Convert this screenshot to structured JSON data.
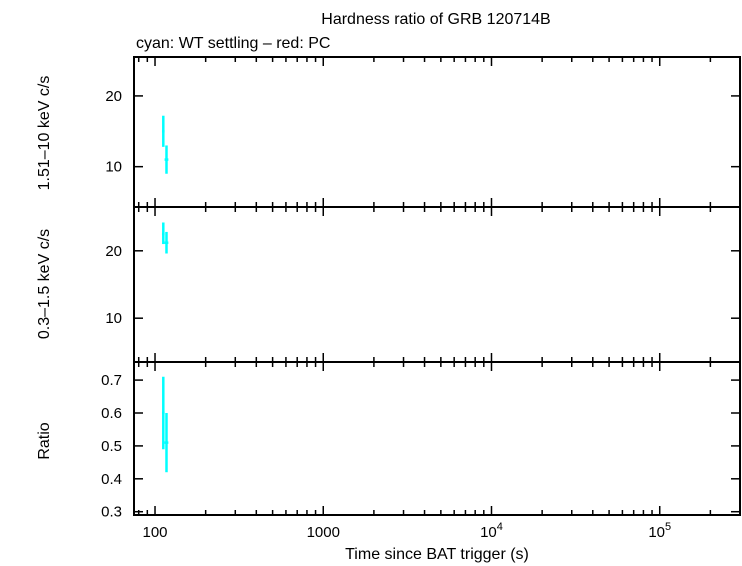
{
  "chart_data": {
    "type": "scatter",
    "title": "Hardness ratio of GRB 120714B",
    "subtitle": "cyan: WT settling – red: PC",
    "xlabel": "Time since BAT trigger (s)",
    "x_scale": "log",
    "xlim": [
      75,
      300000
    ],
    "x_ticks": [
      {
        "value": 100,
        "label": "100"
      },
      {
        "value": 1000,
        "label": "1000"
      },
      {
        "value": 10000,
        "label": "10",
        "exp": "4"
      },
      {
        "value": 100000,
        "label": "10",
        "exp": "5"
      }
    ],
    "colors": {
      "wt_settling": "#00ffff",
      "pc": "#ff0000"
    },
    "panels": [
      {
        "id": "hard",
        "ylabel": "1.51–10 keV c/s",
        "ylim": [
          4.3,
          25.5
        ],
        "y_ticks": [
          {
            "value": 10,
            "label": "10"
          },
          {
            "value": 20,
            "label": "20"
          }
        ],
        "series": [
          {
            "mode": "wt_settling",
            "points": [
              {
                "x": 112,
                "y": 15.0,
                "ylo": 12.8,
                "yhi": 17.2,
                "xlo": 110,
                "xhi": 114
              },
              {
                "x": 117,
                "y": 11.0,
                "ylo": 9.0,
                "yhi": 13.0,
                "xlo": 114,
                "xhi": 120
              }
            ]
          }
        ]
      },
      {
        "id": "soft",
        "ylabel": "0.3–1.5 keV c/s",
        "ylim": [
          3.5,
          26.5
        ],
        "y_ticks": [
          {
            "value": 10,
            "label": "10"
          },
          {
            "value": 20,
            "label": "20"
          }
        ],
        "series": [
          {
            "mode": "wt_settling",
            "points": [
              {
                "x": 112,
                "y": 22.5,
                "ylo": 21.0,
                "yhi": 24.2,
                "xlo": 110,
                "xhi": 114
              },
              {
                "x": 117,
                "y": 21.2,
                "ylo": 19.6,
                "yhi": 22.8,
                "xlo": 114,
                "xhi": 120
              }
            ]
          }
        ]
      },
      {
        "id": "ratio",
        "ylabel": "Ratio",
        "ylim": [
          0.29,
          0.755
        ],
        "y_ticks": [
          {
            "value": 0.3,
            "label": "0.3"
          },
          {
            "value": 0.4,
            "label": "0.4"
          },
          {
            "value": 0.5,
            "label": "0.5"
          },
          {
            "value": 0.6,
            "label": "0.6"
          },
          {
            "value": 0.7,
            "label": "0.7"
          }
        ],
        "series": [
          {
            "mode": "wt_settling",
            "points": [
              {
                "x": 112,
                "y": 0.6,
                "ylo": 0.49,
                "yhi": 0.71,
                "xlo": 110,
                "xhi": 114
              },
              {
                "x": 117,
                "y": 0.51,
                "ylo": 0.42,
                "yhi": 0.6,
                "xlo": 114,
                "xhi": 120
              }
            ]
          }
        ]
      }
    ]
  }
}
